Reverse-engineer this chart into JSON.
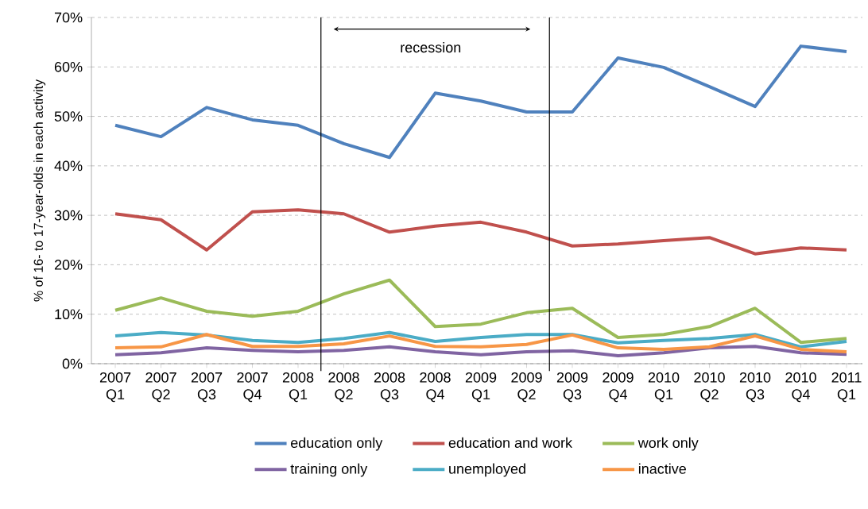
{
  "chart_data": {
    "type": "line",
    "ylabel": "% of 16- to 17-year-olds in each activity",
    "categories": [
      "2007 Q1",
      "2007 Q2",
      "2007 Q3",
      "2007 Q4",
      "2008 Q1",
      "2008 Q2",
      "2008 Q3",
      "2008 Q4",
      "2009 Q1",
      "2009 Q2",
      "2009 Q3",
      "2009 Q4",
      "2010 Q1",
      "2010 Q2",
      "2010 Q3",
      "2010 Q4",
      "2011 Q1"
    ],
    "series": [
      {
        "name": "education only",
        "color": "#4f81bd",
        "values": [
          48.2,
          45.9,
          51.8,
          49.3,
          48.2,
          44.5,
          41.7,
          54.7,
          53.1,
          50.9,
          50.9,
          61.8,
          59.9,
          56.0,
          52.0,
          64.2,
          63.1
        ]
      },
      {
        "name": "education and work",
        "color": "#c0504d",
        "values": [
          30.3,
          29.1,
          23.0,
          30.7,
          31.1,
          30.3,
          26.6,
          27.8,
          28.6,
          26.6,
          23.8,
          24.2,
          24.9,
          25.5,
          22.2,
          23.4,
          23.0
        ]
      },
      {
        "name": "work only",
        "color": "#9bbb59",
        "values": [
          10.8,
          13.3,
          10.6,
          9.6,
          10.6,
          14.1,
          16.9,
          7.5,
          8.0,
          10.3,
          11.2,
          5.3,
          5.9,
          7.5,
          11.2,
          4.3,
          5.1
        ]
      },
      {
        "name": "training only",
        "color": "#8064a2",
        "values": [
          1.8,
          2.2,
          3.2,
          2.7,
          2.4,
          2.7,
          3.4,
          2.4,
          1.8,
          2.4,
          2.6,
          1.6,
          2.2,
          3.2,
          3.5,
          2.2,
          1.9
        ]
      },
      {
        "name": "unemployed",
        "color": "#4bacc6",
        "values": [
          5.6,
          6.3,
          5.8,
          4.7,
          4.3,
          5.1,
          6.3,
          4.5,
          5.3,
          5.9,
          5.9,
          4.2,
          4.7,
          5.1,
          5.9,
          3.4,
          4.5
        ]
      },
      {
        "name": "inactive",
        "color": "#f79646",
        "values": [
          3.2,
          3.4,
          5.9,
          3.5,
          3.5,
          4.0,
          5.6,
          3.5,
          3.4,
          3.9,
          5.8,
          3.2,
          2.9,
          3.4,
          5.6,
          2.9,
          2.4
        ]
      }
    ],
    "ylim": [
      0,
      70
    ],
    "yticks": [
      {
        "value": 0,
        "label": "0%"
      },
      {
        "value": 10,
        "label": "10%"
      },
      {
        "value": 20,
        "label": "20%"
      },
      {
        "value": 30,
        "label": "30%"
      },
      {
        "value": 40,
        "label": "40%"
      },
      {
        "value": 50,
        "label": "50%"
      },
      {
        "value": 60,
        "label": "60%"
      },
      {
        "value": 70,
        "label": "70%"
      }
    ],
    "annotations": [
      "recession"
    ],
    "grid": "y",
    "legend": "bottom",
    "marker": "none",
    "line_style": "solid"
  }
}
